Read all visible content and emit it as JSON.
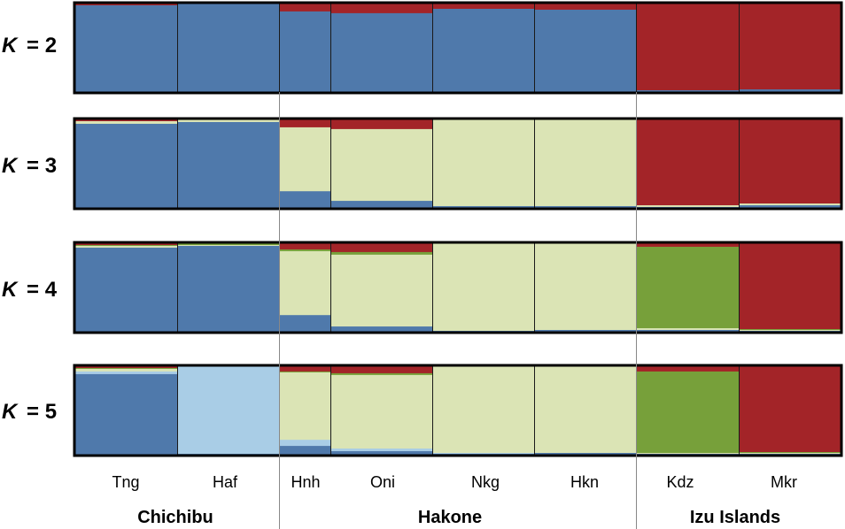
{
  "chart_data": {
    "type": "bar",
    "title": "",
    "xlabel": "",
    "ylabel": "",
    "ylim": [
      0,
      1
    ],
    "populations": [
      "Tng",
      "Haf",
      "Hnh",
      "Oni",
      "Nkg",
      "Hkn",
      "Kdz",
      "Mkr"
    ],
    "regions": [
      {
        "name": "Chichibu",
        "populations": [
          "Tng",
          "Haf"
        ]
      },
      {
        "name": "Hakone",
        "populations": [
          "Hnh",
          "Oni",
          "Nkg",
          "Hkn"
        ]
      },
      {
        "name": "Izu Islands",
        "populations": [
          "Kdz",
          "Mkr"
        ]
      }
    ],
    "cluster_colors": {
      "blue": "#4f79ab",
      "red": "#a32428",
      "cream": "#dbe4b5",
      "green": "#77a03a",
      "lightblue": "#a9cde6"
    },
    "panels": [
      {
        "k_prefix": "K",
        "k_suffix": "= 2",
        "stack_order": [
          "blue",
          "red"
        ],
        "membership": {
          "Tng": {
            "blue": 0.99,
            "red": 0.01
          },
          "Haf": {
            "blue": 1.0,
            "red": 0.0
          },
          "Hnh": {
            "blue": 0.92,
            "red": 0.08
          },
          "Oni": {
            "blue": 0.9,
            "red": 0.1
          },
          "Nkg": {
            "blue": 0.95,
            "red": 0.05
          },
          "Hkn": {
            "blue": 0.94,
            "red": 0.06
          },
          "Kdz": {
            "blue": 0.02,
            "red": 0.98
          },
          "Mkr": {
            "blue": 0.03,
            "red": 0.97
          }
        }
      },
      {
        "k_prefix": "K",
        "k_suffix": "= 3",
        "stack_order": [
          "blue",
          "cream",
          "red"
        ],
        "membership": {
          "Tng": {
            "blue": 0.96,
            "cream": 0.03,
            "red": 0.01
          },
          "Haf": {
            "blue": 0.98,
            "cream": 0.02,
            "red": 0.0
          },
          "Hnh": {
            "blue": 0.19,
            "cream": 0.73,
            "red": 0.08
          },
          "Oni": {
            "blue": 0.08,
            "cream": 0.82,
            "red": 0.1
          },
          "Nkg": {
            "blue": 0.02,
            "cream": 0.98,
            "red": 0.0
          },
          "Hkn": {
            "blue": 0.02,
            "cream": 0.98,
            "red": 0.0
          },
          "Kdz": {
            "blue": 0.01,
            "cream": 0.02,
            "red": 0.97
          },
          "Mkr": {
            "blue": 0.03,
            "cream": 0.02,
            "red": 0.95
          }
        }
      },
      {
        "k_prefix": "K",
        "k_suffix": "= 4",
        "stack_order": [
          "blue",
          "cream",
          "green",
          "red"
        ],
        "membership": {
          "Tng": {
            "blue": 0.96,
            "cream": 0.02,
            "green": 0.01,
            "red": 0.01
          },
          "Haf": {
            "blue": 0.98,
            "cream": 0.01,
            "green": 0.01,
            "red": 0.0
          },
          "Hnh": {
            "blue": 0.19,
            "cream": 0.73,
            "green": 0.02,
            "red": 0.06
          },
          "Oni": {
            "blue": 0.06,
            "cream": 0.82,
            "green": 0.03,
            "red": 0.09
          },
          "Nkg": {
            "blue": 0.01,
            "cream": 0.99,
            "green": 0.0,
            "red": 0.0
          },
          "Hkn": {
            "blue": 0.02,
            "cream": 0.98,
            "green": 0.0,
            "red": 0.0
          },
          "Kdz": {
            "blue": 0.02,
            "cream": 0.02,
            "green": 0.93,
            "red": 0.03
          },
          "Mkr": {
            "blue": 0.01,
            "cream": 0.01,
            "green": 0.01,
            "red": 0.97
          }
        }
      },
      {
        "k_prefix": "K",
        "k_suffix": "= 5",
        "stack_order": [
          "blue",
          "lightblue",
          "cream",
          "green",
          "red"
        ],
        "membership": {
          "Tng": {
            "blue": 0.92,
            "lightblue": 0.03,
            "cream": 0.03,
            "green": 0.01,
            "red": 0.01
          },
          "Haf": {
            "blue": 0.01,
            "lightblue": 0.99,
            "cream": 0.0,
            "green": 0.0,
            "red": 0.0
          },
          "Hnh": {
            "blue": 0.1,
            "lightblue": 0.07,
            "cream": 0.77,
            "green": 0.01,
            "red": 0.05
          },
          "Oni": {
            "blue": 0.04,
            "lightblue": 0.03,
            "cream": 0.84,
            "green": 0.02,
            "red": 0.07
          },
          "Nkg": {
            "blue": 0.01,
            "lightblue": 0.01,
            "cream": 0.98,
            "green": 0.0,
            "red": 0.0
          },
          "Hkn": {
            "blue": 0.02,
            "lightblue": 0.0,
            "cream": 0.98,
            "green": 0.0,
            "red": 0.0
          },
          "Kdz": {
            "blue": 0.01,
            "lightblue": 0.0,
            "cream": 0.01,
            "green": 0.93,
            "red": 0.05
          },
          "Mkr": {
            "blue": 0.01,
            "lightblue": 0.0,
            "cream": 0.01,
            "green": 0.01,
            "red": 0.97
          }
        }
      }
    ]
  }
}
